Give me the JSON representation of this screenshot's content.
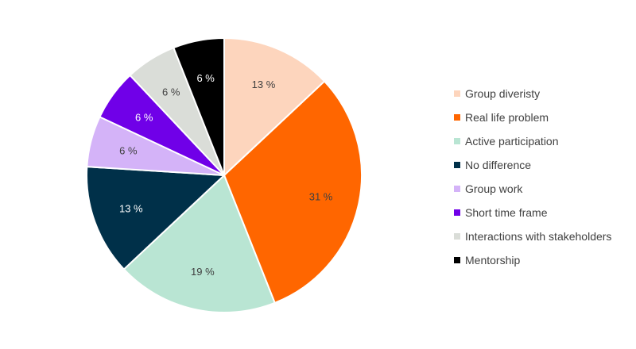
{
  "chart_data": {
    "type": "pie",
    "title": "",
    "unit_suffix": " %",
    "start_angle_deg": 0,
    "direction": "clockwise",
    "legend_position": "right",
    "slices": [
      {
        "label": "Group diveristy",
        "value": 13,
        "display": "13 %",
        "color": "#FDD5BD",
        "label_color": "#404040"
      },
      {
        "label": "Real life problem",
        "value": 31,
        "display": "31 %",
        "color": "#FF6600",
        "label_color": "#404040"
      },
      {
        "label": "Active participation",
        "value": 19,
        "display": "19 %",
        "color": "#B9E5D3",
        "label_color": "#404040"
      },
      {
        "label": "No difference",
        "value": 13,
        "display": "13 %",
        "color": "#003049",
        "label_color": "#ffffff"
      },
      {
        "label": "Group work",
        "value": 6,
        "display": "6 %",
        "color": "#D4B3F8",
        "label_color": "#404040"
      },
      {
        "label": "Short time frame",
        "value": 6,
        "display": "6 %",
        "color": "#7000E8",
        "label_color": "#ffffff"
      },
      {
        "label": "Interactions with stakeholders",
        "value": 6,
        "display": "6 %",
        "color": "#DADDD8",
        "label_color": "#404040"
      },
      {
        "label": "Mentorship",
        "value": 6,
        "display": "6 %",
        "color": "#000000",
        "label_color": "#ffffff"
      }
    ]
  }
}
